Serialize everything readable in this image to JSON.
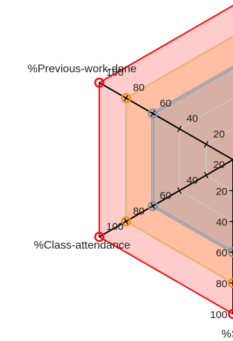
{
  "chart_data": {
    "type": "radar",
    "title": "",
    "axes": [
      {
        "name": "%Previous-work-done",
        "ticks": [
          "20",
          "40",
          "60",
          "80",
          "100"
        ]
      },
      {
        "name": "%Class-attendance",
        "ticks": [
          "20",
          "40",
          "60",
          "80",
          "100"
        ]
      },
      {
        "name": "%Sc",
        "ticks": [
          "20",
          "40",
          "60",
          "80",
          "100"
        ]
      }
    ],
    "range": [
      0,
      100
    ],
    "grid": true,
    "legend": "none",
    "series": [
      {
        "color": "#ff0000",
        "fill": "#ff0000",
        "fill_opacity": 0.2,
        "values": [
          100,
          100,
          100
        ],
        "markers": "open-circle"
      },
      {
        "color": "#ff8c00",
        "fill": "#ff8c00",
        "fill_opacity": 0.2,
        "values": [
          80,
          80,
          80
        ],
        "markers": "open-circle"
      },
      {
        "color": "#8a94a8",
        "fill": "#8a94a8",
        "fill_opacity": 0.35,
        "values": [
          60,
          60,
          60
        ],
        "markers": "open-circle"
      }
    ]
  }
}
